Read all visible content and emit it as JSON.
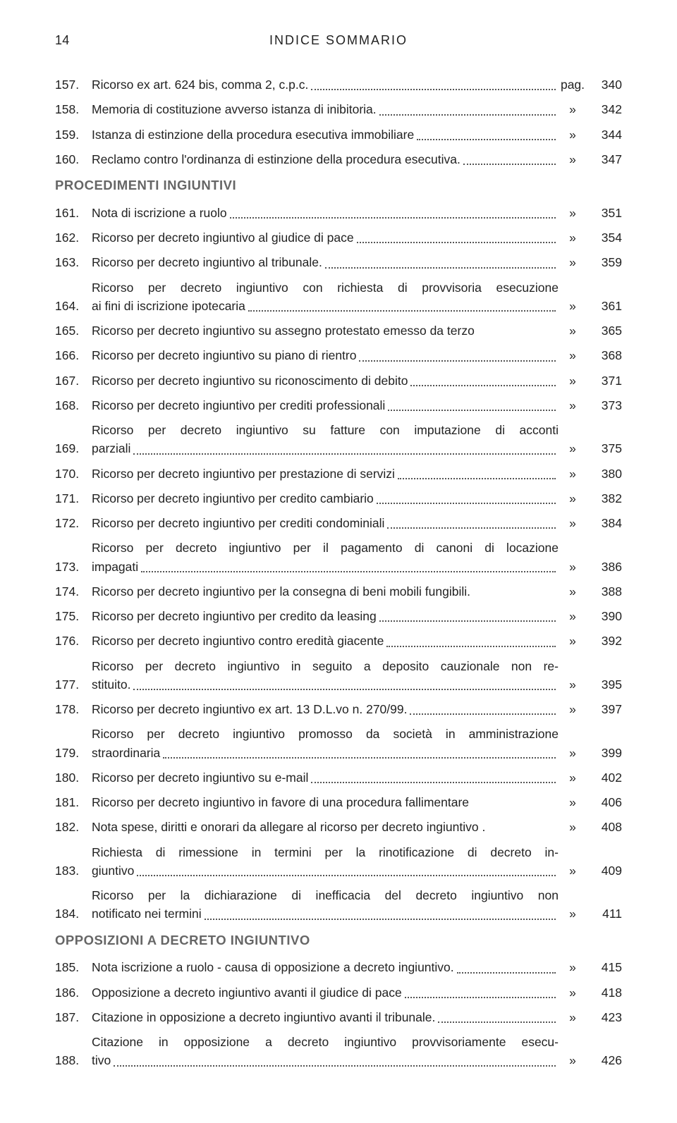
{
  "page_number_top": "14",
  "header_title": "INDICE SOMMARIO",
  "page_label": "pag.",
  "raquo": "»",
  "colors": {
    "section_heading": "#666666",
    "text": "#222222",
    "background": "#ffffff",
    "dots": "#555555"
  },
  "typography": {
    "body_fontsize_pt": 13,
    "section_fontsize_pt": 14,
    "font_family": "Arial, Helvetica, sans-serif"
  },
  "entries": [
    {
      "n": "157.",
      "t": "Ricorso ex art. 624 bis, comma 2, c.p.c.",
      "sym": "pag.",
      "p": "340"
    },
    {
      "n": "158.",
      "t": "Memoria di costituzione avverso istanza di inibitoria.",
      "sym": "»",
      "p": "342"
    },
    {
      "n": "159.",
      "t": "Istanza di estinzione della procedura esecutiva immobiliare",
      "sym": "»",
      "p": "344"
    },
    {
      "n": "160.",
      "t": "Reclamo contro l'ordinanza di estinzione della procedura esecutiva.",
      "sym": "»",
      "p": "347"
    },
    {
      "section": "PROCEDIMENTI INGIUNTIVI"
    },
    {
      "n": "161.",
      "t": "Nota di iscrizione a ruolo",
      "sym": "»",
      "p": "351"
    },
    {
      "n": "162.",
      "t": "Ricorso per decreto ingiuntivo al giudice di pace",
      "sym": "»",
      "p": "354"
    },
    {
      "n": "163.",
      "t": "Ricorso per decreto ingiuntivo al tribunale.",
      "sym": "»",
      "p": "359"
    },
    {
      "n": "164.",
      "lines": [
        "Ricorso per decreto ingiuntivo con richiesta di provvisoria esecuzione"
      ],
      "t": "ai fini di iscrizione ipotecaria",
      "sym": "»",
      "p": "361"
    },
    {
      "n": "165.",
      "t": "Ricorso per decreto ingiuntivo su assegno protestato emesso da terzo",
      "sym": "»",
      "p": "365",
      "nodots": true
    },
    {
      "n": "166.",
      "t": "Ricorso per decreto ingiuntivo su piano di rientro",
      "sym": "»",
      "p": "368"
    },
    {
      "n": "167.",
      "t": "Ricorso per decreto ingiuntivo su riconoscimento di debito",
      "sym": "»",
      "p": "371"
    },
    {
      "n": "168.",
      "t": "Ricorso per decreto ingiuntivo per crediti professionali",
      "sym": "»",
      "p": "373"
    },
    {
      "n": "169.",
      "lines": [
        "Ricorso per decreto ingiuntivo su fatture con imputazione di acconti"
      ],
      "t": "parziali",
      "sym": "»",
      "p": "375"
    },
    {
      "n": "170.",
      "t": "Ricorso per decreto ingiuntivo per prestazione di servizi",
      "sym": "»",
      "p": "380"
    },
    {
      "n": "171.",
      "t": "Ricorso per decreto ingiuntivo per credito cambiario",
      "sym": "»",
      "p": "382"
    },
    {
      "n": "172.",
      "t": "Ricorso per decreto ingiuntivo per crediti condominiali",
      "sym": "»",
      "p": "384"
    },
    {
      "n": "173.",
      "lines": [
        "Ricorso per decreto ingiuntivo per il pagamento di canoni di locazione"
      ],
      "t": "impagati",
      "sym": "»",
      "p": "386"
    },
    {
      "n": "174.",
      "t": "Ricorso per decreto ingiuntivo per la consegna di beni mobili fungibili.",
      "sym": "»",
      "p": "388",
      "nodots": true
    },
    {
      "n": "175.",
      "t": "Ricorso per decreto ingiuntivo per credito da leasing",
      "sym": "»",
      "p": "390"
    },
    {
      "n": "176.",
      "t": "Ricorso per decreto ingiuntivo contro eredità giacente",
      "sym": "»",
      "p": "392"
    },
    {
      "n": "177.",
      "lines": [
        "Ricorso per decreto ingiuntivo in seguito a deposito cauzionale non re-"
      ],
      "t": "stituito.",
      "sym": "»",
      "p": "395"
    },
    {
      "n": "178.",
      "t": "Ricorso per decreto ingiuntivo ex art. 13 D.L.vo n. 270/99.",
      "sym": "»",
      "p": "397"
    },
    {
      "n": "179.",
      "lines": [
        "Ricorso per decreto ingiuntivo promosso da società in amministrazione"
      ],
      "t": "straordinaria",
      "sym": "»",
      "p": "399"
    },
    {
      "n": "180.",
      "t": "Ricorso per decreto ingiuntivo su e-mail",
      "sym": "»",
      "p": "402"
    },
    {
      "n": "181.",
      "t": "Ricorso per decreto ingiuntivo in favore di una procedura fallimentare",
      "sym": "»",
      "p": "406",
      "nodots": true
    },
    {
      "n": "182.",
      "t": "Nota spese, diritti e onorari da allegare al ricorso per decreto ingiuntivo .",
      "sym": "»",
      "p": "408",
      "nodots": true
    },
    {
      "n": "183.",
      "lines": [
        "Richiesta di rimessione in termini per la rinotificazione di decreto in-"
      ],
      "t": "giuntivo",
      "sym": "»",
      "p": "409"
    },
    {
      "n": "184.",
      "lines": [
        "Ricorso per la dichiarazione di inefficacia del decreto ingiuntivo non"
      ],
      "t": "notificato nei termini",
      "sym": "»",
      "p": "411"
    },
    {
      "section": "OPPOSIZIONI A DECRETO INGIUNTIVO"
    },
    {
      "n": "185.",
      "t": "Nota iscrizione a ruolo - causa di opposizione a decreto ingiuntivo.",
      "sym": "»",
      "p": "415"
    },
    {
      "n": "186.",
      "t": "Opposizione a decreto ingiuntivo avanti il giudice di pace",
      "sym": "»",
      "p": "418"
    },
    {
      "n": "187.",
      "t": "Citazione in opposizione a decreto ingiuntivo avanti il tribunale.",
      "sym": "»",
      "p": "423"
    },
    {
      "n": "188.",
      "lines": [
        "Citazione in opposizione a decreto ingiuntivo provvisoriamente esecu-"
      ],
      "t": "tivo",
      "sym": "»",
      "p": "426"
    }
  ]
}
